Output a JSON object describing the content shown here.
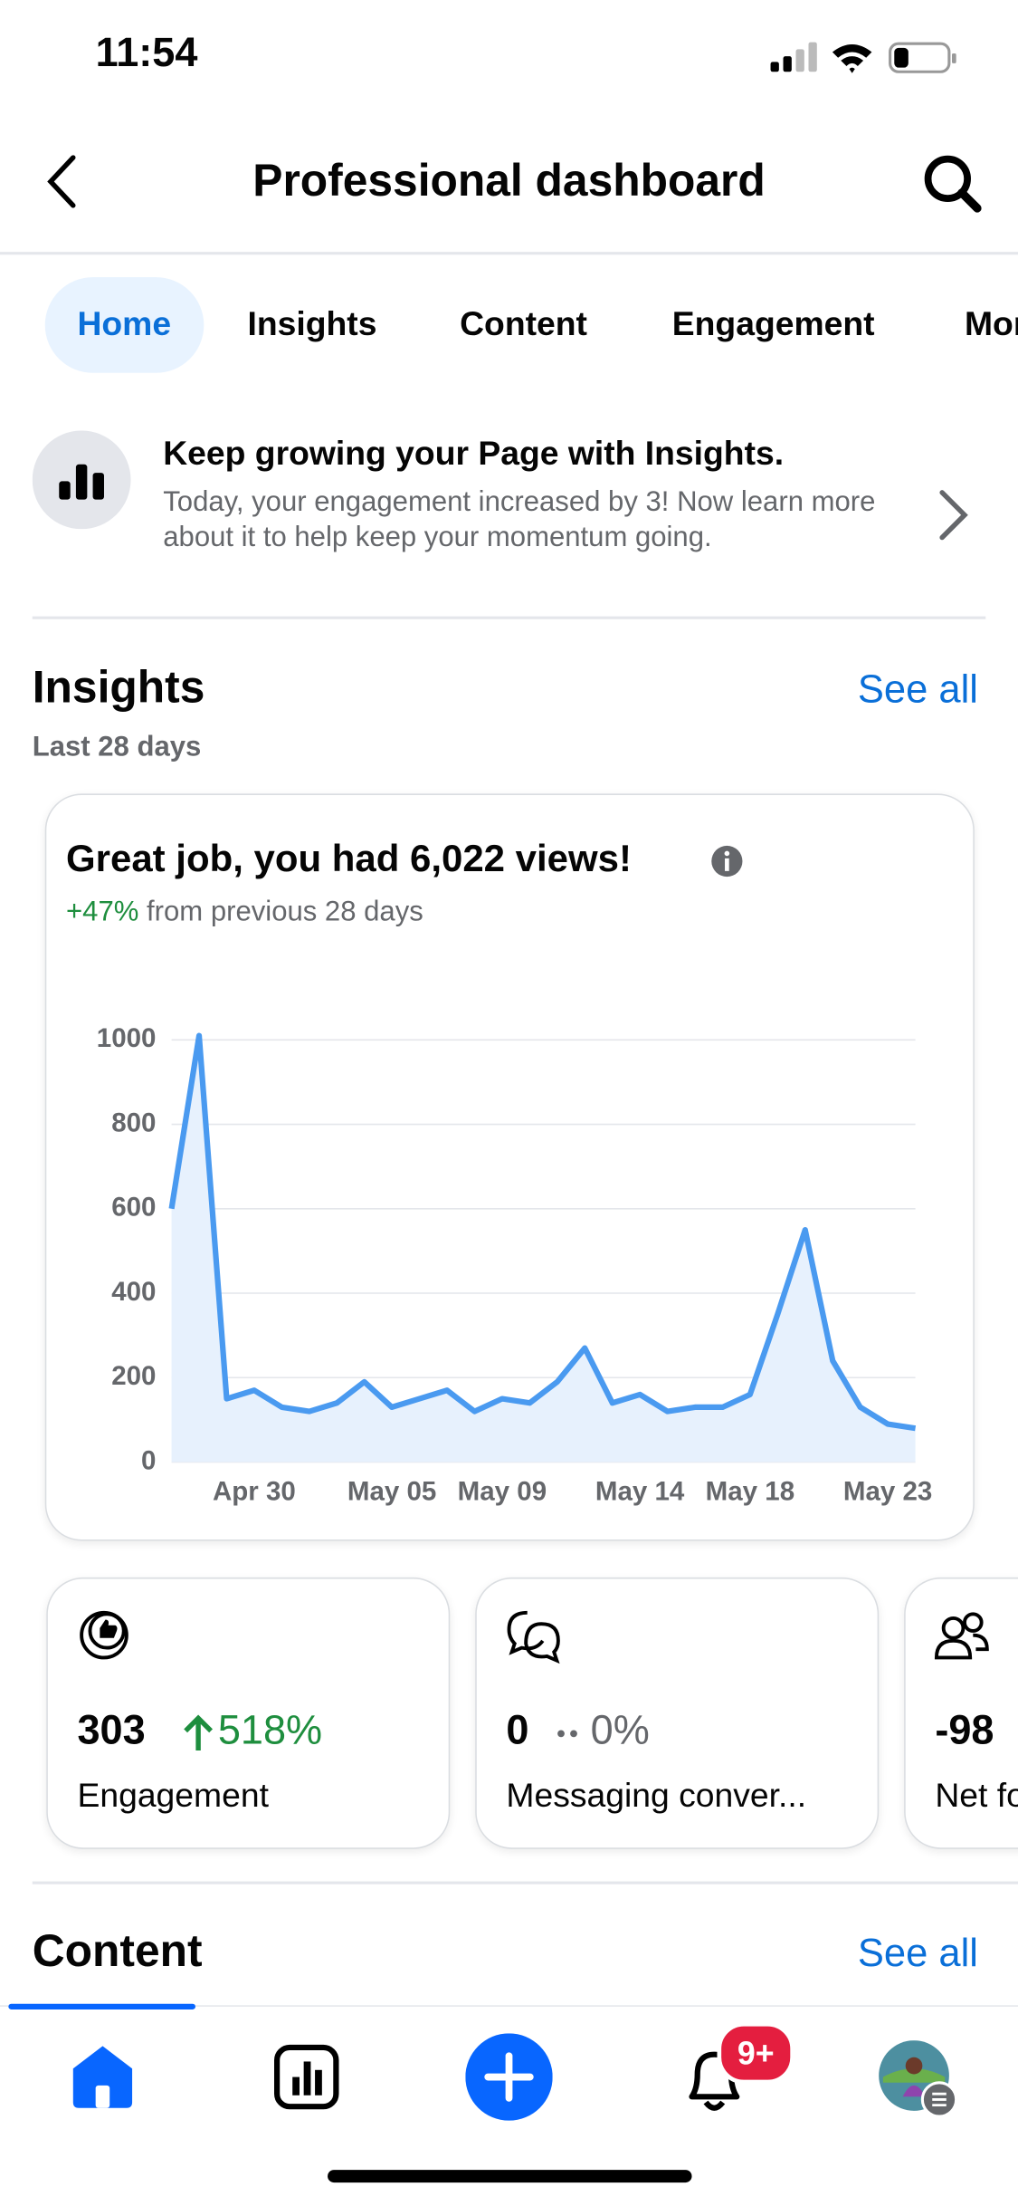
{
  "status_bar": {
    "time": "11:54"
  },
  "header": {
    "title": "Professional dashboard"
  },
  "tabs": [
    "Home",
    "Insights",
    "Content",
    "Engagement",
    "More"
  ],
  "banner": {
    "title": "Keep growing your Page with Insights.",
    "body": "Today, your engagement increased by 3! Now learn more about it to help keep your momentum going."
  },
  "insights": {
    "title": "Insights",
    "see_all": "See all",
    "period": "Last 28 days",
    "card": {
      "headline": "Great job, you had 6,022 views!",
      "change": "+47%",
      "change_text": "from previous 28 days"
    },
    "chart_data": {
      "type": "line",
      "color": "#4a9af0",
      "area_color": "#e7f1fd",
      "categories": [
        null,
        null,
        null,
        "Apr 30",
        null,
        null,
        null,
        null,
        "May 05",
        null,
        null,
        null,
        "May 09",
        null,
        null,
        null,
        null,
        "May 14",
        null,
        null,
        null,
        "May 18",
        null,
        null,
        null,
        null,
        "May 23",
        null
      ],
      "values": [
        600,
        1010,
        150,
        170,
        130,
        120,
        140,
        190,
        130,
        150,
        170,
        120,
        150,
        140,
        190,
        270,
        140,
        160,
        120,
        130,
        130,
        160,
        350,
        550,
        240,
        130,
        90,
        80
      ],
      "ylim": [
        0,
        1000
      ],
      "yticks": [
        0,
        200,
        400,
        600,
        800,
        1000
      ],
      "grid": true
    }
  },
  "metrics": [
    {
      "value": "303",
      "change": "518%",
      "label": "Engagement"
    },
    {
      "value": "0",
      "change": "0%",
      "label": "Messaging conver..."
    },
    {
      "value": "-98",
      "label": "Net followers"
    }
  ],
  "content": {
    "title": "Content",
    "see_all": "See all"
  },
  "nav": {
    "badge": "9+"
  }
}
